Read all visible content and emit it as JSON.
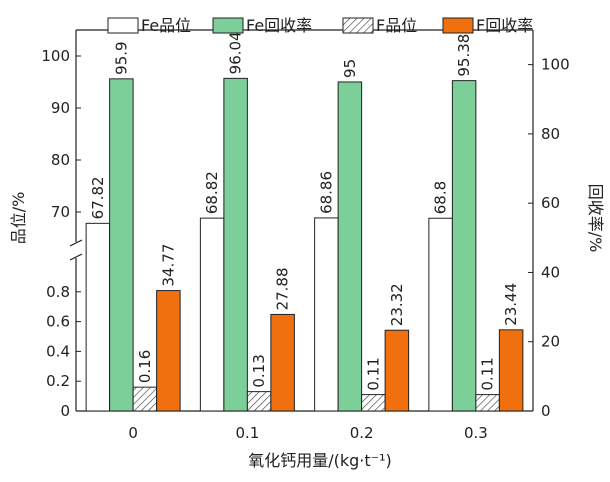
{
  "chart_data": {
    "type": "bar",
    "xlabel": "氧化钙用量/(kg·t⁻¹)",
    "ylabel_left": "品位/%",
    "ylabel_right": "回收率/%",
    "categories": [
      "0",
      "0.1",
      "0.2",
      "0.3"
    ],
    "axis_left": {
      "broken": true,
      "lower_range": [
        0,
        1.0
      ],
      "lower_ticks": [
        "0",
        "0.2",
        "0.4",
        "0.6",
        "0.8"
      ],
      "upper_range": [
        65,
        105
      ],
      "upper_ticks": [
        "70",
        "80",
        "90",
        "100"
      ]
    },
    "axis_right": {
      "range": [
        0,
        110
      ],
      "ticks": [
        "0",
        "20",
        "40",
        "60",
        "80",
        "100"
      ]
    },
    "series": [
      {
        "name": "Fe品位",
        "axis": "left",
        "values": [
          67.82,
          68.82,
          68.86,
          68.8
        ],
        "labels": [
          "67.82",
          "68.82",
          "68.86",
          "68.8"
        ],
        "fill": "#ffffff",
        "pattern": "none"
      },
      {
        "name": "Fe回收率",
        "axis": "right",
        "values": [
          95.9,
          96.04,
          95,
          95.38
        ],
        "labels": [
          "95.9",
          "96.04",
          "95",
          "95.38"
        ],
        "fill": "#7dcf9a",
        "pattern": "none"
      },
      {
        "name": "F品位",
        "axis": "left",
        "values": [
          0.16,
          0.13,
          0.11,
          0.11
        ],
        "labels": [
          "0.16",
          "0.13",
          "0.11",
          "0.11"
        ],
        "fill": "#ffffff",
        "pattern": "hatch"
      },
      {
        "name": "F回收率",
        "axis": "right",
        "values": [
          34.77,
          27.88,
          23.32,
          23.44
        ],
        "labels": [
          "34.77",
          "27.88",
          "23.32",
          "23.44"
        ],
        "fill": "#f07010",
        "pattern": "none"
      }
    ],
    "legend_position": "top",
    "grid": false
  }
}
